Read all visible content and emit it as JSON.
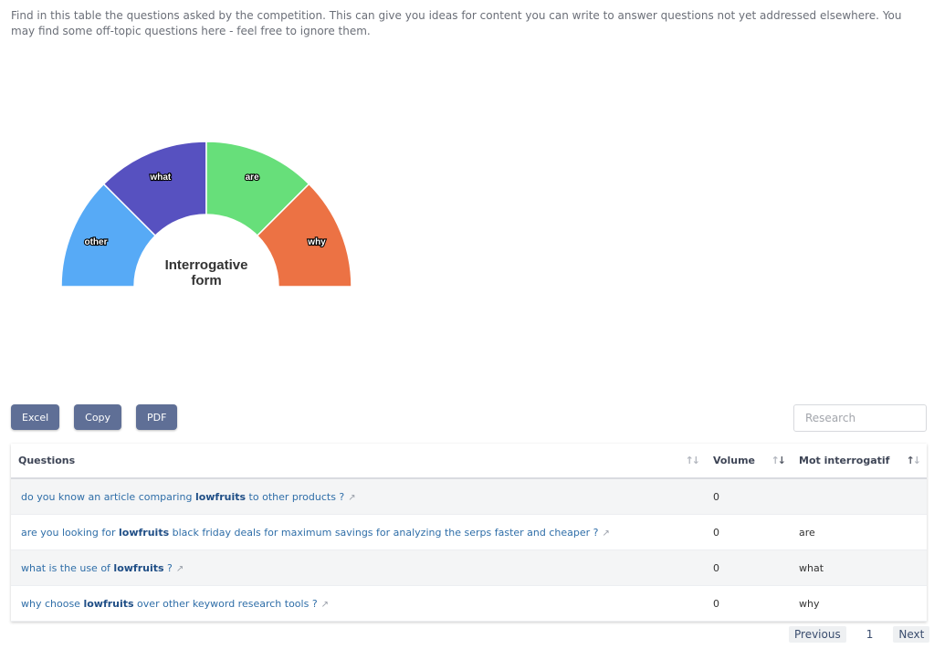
{
  "intro_text": "Find in this table the questions asked by the competition.  This can give you ideas for content you can write to answer questions not yet addressed elsewhere.  You may find some off-topic questions here - feel free to ignore them.",
  "chart_data": {
    "type": "pie",
    "title": "Interrogative form",
    "title_lines": [
      "Interrogative",
      "form"
    ],
    "categories": [
      "other",
      "what",
      "are",
      "why"
    ],
    "values": [
      1,
      1,
      1,
      1
    ],
    "colors": [
      "#57aaf6",
      "#5751c0",
      "#67df7a",
      "#ec7244"
    ],
    "start_angle_deg": 180,
    "end_angle_deg": 360
  },
  "toolbar": {
    "excel": "Excel",
    "copy": "Copy",
    "pdf": "PDF"
  },
  "search": {
    "placeholder": "Research",
    "value": ""
  },
  "table": {
    "headers": {
      "questions": "Questions",
      "volume": "Volume",
      "mot": "Mot interrogatif"
    },
    "rows": [
      {
        "pre": "do you know an article comparing ",
        "bold": "lowfruits",
        "post": " to other products ?",
        "volume": "0",
        "mot": ""
      },
      {
        "pre": "are you looking for ",
        "bold": "lowfruits",
        "post": " black friday deals for maximum savings for analyzing the serps faster and cheaper ?",
        "volume": "0",
        "mot": "are"
      },
      {
        "pre": "what is the use of ",
        "bold": "lowfruits",
        "post": " ?",
        "volume": "0",
        "mot": "what"
      },
      {
        "pre": "why choose ",
        "bold": "lowfruits",
        "post": " over other keyword research tools ?",
        "volume": "0",
        "mot": "why"
      }
    ]
  },
  "pagination": {
    "previous": "Previous",
    "page": "1",
    "next": "Next"
  }
}
